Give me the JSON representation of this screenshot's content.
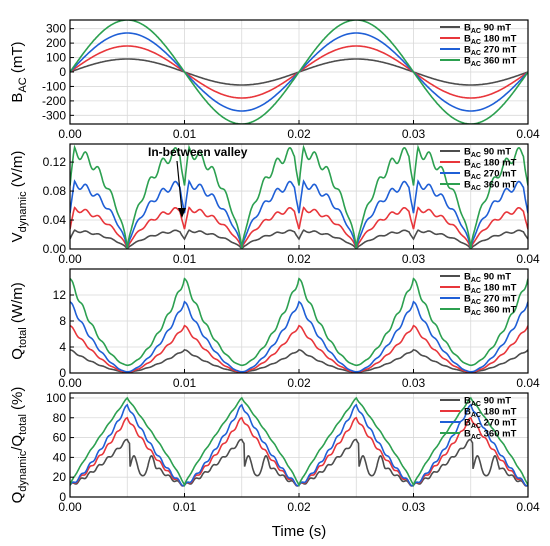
{
  "colors": {
    "series_90": "#4d4d4d",
    "series_180": "#e8363b",
    "series_270": "#1f5fd6",
    "series_360": "#2ca050",
    "grid": "#d9d9d9",
    "axis": "#000000"
  },
  "figure": {
    "xlabel": "Time (s)",
    "x_ticks": [
      "0.00",
      "0.01",
      "0.02",
      "0.03",
      "0.04"
    ]
  },
  "legend": {
    "prefix": "B",
    "sub": "AC",
    "entries": [
      " 90 mT",
      " 180 mT",
      " 270 mT",
      " 360 mT"
    ]
  },
  "chart_data": [
    {
      "type": "line",
      "panel": "B_AC",
      "ylabel_main": "B",
      "ylabel_sub": "AC",
      "ylabel_tail": " (mT)",
      "ylim": [
        -360,
        360
      ],
      "yticks": [
        "300",
        "200",
        "100",
        "0",
        "-100",
        "-200",
        "-300"
      ],
      "ytick_values": [
        300,
        200,
        100,
        0,
        -100,
        -200,
        -300
      ],
      "xlim": [
        0,
        0.04
      ],
      "series": [
        {
          "name": "BAC 90 mT",
          "amplitude": 90,
          "frequency_hz": 50
        },
        {
          "name": "BAC 180 mT",
          "amplitude": 180,
          "frequency_hz": 50
        },
        {
          "name": "BAC 270 mT",
          "amplitude": 270,
          "frequency_hz": 50
        },
        {
          "name": "BAC 360 mT",
          "amplitude": 360,
          "frequency_hz": 50
        }
      ],
      "grid": true,
      "legend_position": "top-right"
    },
    {
      "type": "line",
      "panel": "V_dynamic",
      "ylabel_main": "V",
      "ylabel_sub": "dynamic",
      "ylabel_tail": " (V/m)",
      "ylim": [
        0,
        0.145
      ],
      "yticks": [
        "0.12",
        "0.08",
        "0.04",
        "0.00"
      ],
      "ytick_values": [
        0.12,
        0.08,
        0.04,
        0.0
      ],
      "xlim": [
        0,
        0.04
      ],
      "series": [
        {
          "name": "BAC 90 mT",
          "peak": 0.025
        },
        {
          "name": "BAC 180 mT",
          "peak": 0.055
        },
        {
          "name": "BAC 270 mT",
          "peak": 0.09
        },
        {
          "name": "BAC 360 mT",
          "peak": 0.135
        }
      ],
      "annotation": "In-between valley",
      "grid": true,
      "legend_position": "top-right"
    },
    {
      "type": "line",
      "panel": "Q_total",
      "ylabel_main": "Q",
      "ylabel_sub": "total",
      "ylabel_tail": " (W/m)",
      "ylim": [
        0,
        16
      ],
      "yticks": [
        "12",
        "8",
        "4",
        "0"
      ],
      "ytick_values": [
        12,
        8,
        4,
        0
      ],
      "xlim": [
        0,
        0.04
      ],
      "series": [
        {
          "name": "BAC 90 mT",
          "peak": 3.6
        },
        {
          "name": "BAC 180 mT",
          "peak": 7.3
        },
        {
          "name": "BAC 270 mT",
          "peak": 11
        },
        {
          "name": "BAC 360 mT",
          "peak": 14.8
        }
      ],
      "grid": true,
      "legend_position": "top-right"
    },
    {
      "type": "line",
      "panel": "Q_ratio",
      "ylabel_main": "Q",
      "ylabel_sub": "dynamic",
      "ylabel_mid": "/Q",
      "ylabel_sub2": "total",
      "ylabel_tail": " (%)",
      "ylim": [
        0,
        105
      ],
      "yticks": [
        "100",
        "80",
        "60",
        "40",
        "20",
        "0"
      ],
      "ytick_values": [
        100,
        80,
        60,
        40,
        20,
        0
      ],
      "xlim": [
        0,
        0.04
      ],
      "series": [
        {
          "name": "BAC 90 mT",
          "peak": 58
        },
        {
          "name": "BAC 180 mT",
          "peak": 80
        },
        {
          "name": "BAC 270 mT",
          "peak": 93
        },
        {
          "name": "BAC 360 mT",
          "peak": 100
        }
      ],
      "grid": true,
      "legend_position": "top-right"
    }
  ]
}
